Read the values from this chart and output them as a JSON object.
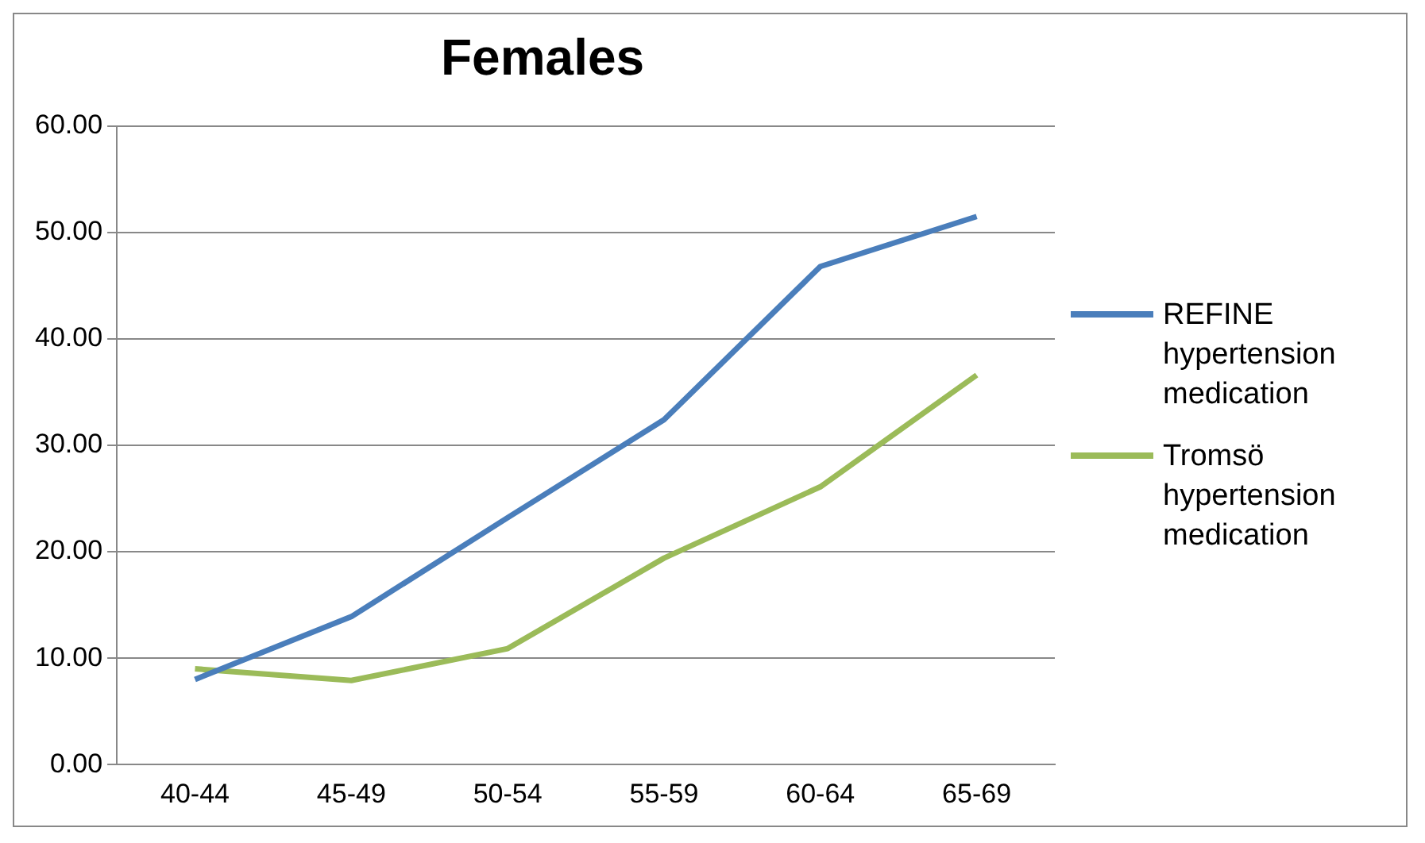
{
  "chart_data": {
    "type": "line",
    "title": "Females",
    "categories": [
      "40-44",
      "45-49",
      "50-54",
      "55-59",
      "60-64",
      "65-69"
    ],
    "series": [
      {
        "name": " REFINE hypertension medication",
        "color": "#4a7ebb",
        "values": [
          8.0,
          13.9,
          23.2,
          32.4,
          46.8,
          51.5
        ]
      },
      {
        "name": "Tromsö hypertension medication",
        "color": "#9bbb59",
        "values": [
          9.0,
          7.9,
          10.9,
          19.4,
          26.1,
          36.6
        ]
      }
    ],
    "ylim": [
      0,
      60
    ],
    "yticks": [
      {
        "value": 0,
        "label": "0.00"
      },
      {
        "value": 10,
        "label": "10.00"
      },
      {
        "value": 20,
        "label": "20.00"
      },
      {
        "value": 30,
        "label": "30.00"
      },
      {
        "value": 40,
        "label": "40.00"
      },
      {
        "value": 50,
        "label": "50.00"
      },
      {
        "value": 60,
        "label": "60.00"
      }
    ],
    "grid": "y",
    "legend": "right",
    "marker": "none"
  }
}
